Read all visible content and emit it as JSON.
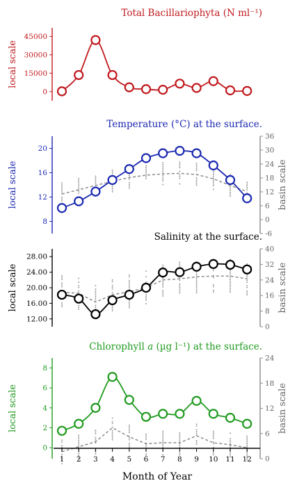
{
  "chart_data": [
    {
      "type": "line",
      "title": "Total Bacillariophyta (N ml⁻¹)",
      "color": "#c0181c",
      "ylabel_left": "local scale",
      "ylabel_right": "",
      "x": [
        1,
        2,
        3,
        4,
        5,
        6,
        7,
        8,
        9,
        10,
        11,
        12
      ],
      "series": [
        {
          "values": [
            200,
            13500,
            42000,
            13500,
            3500,
            2000,
            1500,
            6500,
            3000,
            8500,
            1000,
            500
          ]
        }
      ],
      "ylim": [
        -7500,
        52000
      ],
      "yticks": [
        0,
        15000,
        30000,
        45000
      ],
      "ytick_labels": [
        "0",
        "15000",
        "30000",
        "45000"
      ]
    },
    {
      "type": "line",
      "title": "Temperature (°C) at the surface.",
      "color": "#1a28b0",
      "ylabel_left": "local scale",
      "ylabel_right": "basin scale",
      "x": [
        1,
        2,
        3,
        4,
        5,
        6,
        7,
        8,
        9,
        10,
        11,
        12
      ],
      "series": [
        {
          "values": [
            10.2,
            11.3,
            12.9,
            14.8,
            16.6,
            18.4,
            19.2,
            19.6,
            19.2,
            17.2,
            14.8,
            11.8
          ]
        }
      ],
      "basin_mean": [
        12.5,
        13.2,
        13.9,
        14.6,
        15.2,
        15.6,
        15.8,
        15.9,
        15.7,
        15.0,
        13.9,
        12.9
      ],
      "ylim": [
        6,
        22
      ],
      "yticks": [
        8,
        12,
        16,
        20
      ],
      "ytick_labels": [
        "8",
        "12",
        "16",
        "20"
      ],
      "ylim_right": [
        -6,
        36
      ],
      "yticks_right": [
        -6,
        0,
        6,
        12,
        18,
        24,
        30,
        36
      ],
      "ytick_labels_right": [
        "-6",
        "0",
        "6",
        "12",
        "18",
        "24",
        "30",
        "36"
      ]
    },
    {
      "type": "line",
      "title": "Salinity at the surface.",
      "color": "#000000",
      "ylabel_left": "local scale",
      "ylabel_right": "basin scale",
      "x": [
        1,
        2,
        3,
        4,
        5,
        6,
        7,
        8,
        9,
        10,
        11,
        12
      ],
      "series": [
        {
          "values": [
            18.2,
            17.2,
            13.2,
            16.8,
            18.2,
            20.0,
            23.9,
            24.0,
            25.4,
            26.1,
            25.9,
            24.7
          ]
        }
      ],
      "basin_mean": [
        18.8,
        18.6,
        16.3,
        18.2,
        19.0,
        20.0,
        22.0,
        22.3,
        22.8,
        23.0,
        23.0,
        22.3
      ],
      "ylim": [
        10.0,
        30.0
      ],
      "yticks": [
        12.0,
        16.0,
        20.0,
        24.0,
        28.0
      ],
      "ytick_labels": [
        "12.00",
        "16.00",
        "20.00",
        "24.00",
        "28.00"
      ],
      "ylim_right": [
        0,
        40
      ],
      "yticks_right": [
        0,
        8,
        16,
        24,
        32,
        40
      ],
      "ytick_labels_right": [
        "0",
        "8",
        "16",
        "24",
        "32",
        "40"
      ]
    },
    {
      "type": "line",
      "title": "Chlorophyll a (µg l⁻¹) at the surface.",
      "color": "#1f9a1f",
      "ylabel_left": "local scale",
      "ylabel_right": "basin scale",
      "x": [
        1,
        2,
        3,
        4,
        5,
        6,
        7,
        8,
        9,
        10,
        11,
        12
      ],
      "series": [
        {
          "values": [
            1.7,
            2.4,
            4.0,
            7.1,
            4.8,
            3.1,
            3.4,
            3.4,
            4.7,
            3.4,
            3.0,
            2.4
          ]
        }
      ],
      "basin_mean": [
        -0.4,
        0.1,
        0.6,
        2.0,
        1.1,
        0.4,
        0.5,
        0.5,
        1.2,
        0.5,
        0.3,
        0.0
      ],
      "ylim": [
        -1.1,
        9.0
      ],
      "yticks": [
        0,
        2,
        4,
        6,
        8
      ],
      "ytick_labels": [
        "0",
        "2",
        "4",
        "6",
        "8"
      ],
      "ylim_right": [
        0,
        24
      ],
      "yticks_right": [
        0,
        6,
        12,
        18,
        24
      ],
      "ytick_labels_right": [
        "0",
        "6",
        "12",
        "18",
        "24"
      ]
    }
  ],
  "shared_x": {
    "xlabel": "Month of Year",
    "ticks": [
      1,
      2,
      3,
      4,
      5,
      6,
      7,
      8,
      9,
      10,
      11,
      12
    ],
    "tick_labels": [
      "1",
      "2",
      "3",
      "4",
      "5",
      "6",
      "7",
      "8",
      "9",
      "10",
      "11",
      "12"
    ]
  }
}
